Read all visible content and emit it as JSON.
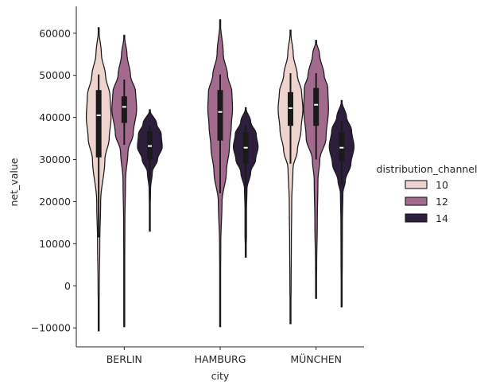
{
  "chart_data": {
    "type": "violin",
    "title": "",
    "xlabel": "city",
    "ylabel": "net_value",
    "categories": [
      "BERLIN",
      "HAMBURG",
      "MÜNCHEN"
    ],
    "ylim": [
      -14500,
      66000
    ],
    "yticks": [
      -10000,
      0,
      10000,
      20000,
      30000,
      40000,
      50000,
      60000
    ],
    "ytick_labels": [
      "−10000",
      "0",
      "10000",
      "20000",
      "30000",
      "40000",
      "50000",
      "60000"
    ],
    "legend": {
      "title": "distribution_channel",
      "placement": "right",
      "entries": [
        "10",
        "12",
        "14"
      ]
    },
    "colors": {
      "10": "#eed3ce",
      "12": "#a26a8c",
      "14": "#2d1e3e",
      "outline": "#1a1a1a",
      "box": "#1a1a1a",
      "median": "#ffffff",
      "axis": "#262626"
    },
    "series": [
      {
        "name": "10",
        "violins": [
          {
            "category": "BERLIN",
            "min": -10700,
            "max": 61300,
            "q1": 30500,
            "median": 40500,
            "q3": 46500,
            "whisker_low": 11500,
            "whisker_high": 50200,
            "profile": [
              [
                -10700,
                0.0
              ],
              [
                0,
                0.05
              ],
              [
                10000,
                0.09
              ],
              [
                20000,
                0.16
              ],
              [
                30000,
                0.5
              ],
              [
                35000,
                0.85
              ],
              [
                40000,
                1.0
              ],
              [
                45000,
                0.92
              ],
              [
                50000,
                0.55
              ],
              [
                55000,
                0.22
              ],
              [
                61300,
                0.0
              ]
            ]
          },
          {
            "category": "MÜNCHEN",
            "min": -9000,
            "max": 60700,
            "q1": 38000,
            "median": 42200,
            "q3": 46000,
            "whisker_low": 29000,
            "whisker_high": 50500,
            "profile": [
              [
                -9000,
                0.0
              ],
              [
                0,
                0.05
              ],
              [
                10000,
                0.07
              ],
              [
                20000,
                0.1
              ],
              [
                28000,
                0.2
              ],
              [
                32000,
                0.55
              ],
              [
                37000,
                0.85
              ],
              [
                42000,
                1.0
              ],
              [
                46000,
                0.9
              ],
              [
                50000,
                0.55
              ],
              [
                55000,
                0.22
              ],
              [
                60700,
                0.0
              ]
            ]
          }
        ]
      },
      {
        "name": "12",
        "violins": [
          {
            "category": "BERLIN",
            "min": -9700,
            "max": 59500,
            "q1": 38700,
            "median": 42500,
            "q3": 45000,
            "whisker_low": 33500,
            "whisker_high": 49000,
            "profile": [
              [
                -9700,
                0.0
              ],
              [
                0,
                0.03
              ],
              [
                15000,
                0.05
              ],
              [
                25000,
                0.1
              ],
              [
                32000,
                0.3
              ],
              [
                36000,
                0.72
              ],
              [
                42000,
                1.0
              ],
              [
                46000,
                0.92
              ],
              [
                50000,
                0.5
              ],
              [
                55000,
                0.22
              ],
              [
                59500,
                0.0
              ]
            ]
          },
          {
            "category": "HAMBURG",
            "min": -9700,
            "max": 63200,
            "q1": 34500,
            "median": 41300,
            "q3": 46500,
            "whisker_low": 22000,
            "whisker_high": 50200,
            "profile": [
              [
                -9700,
                0.0
              ],
              [
                0,
                0.03
              ],
              [
                10000,
                0.05
              ],
              [
                20000,
                0.15
              ],
              [
                27000,
                0.5
              ],
              [
                33000,
                0.75
              ],
              [
                38000,
                0.9
              ],
              [
                42000,
                1.0
              ],
              [
                46000,
                0.95
              ],
              [
                50000,
                0.6
              ],
              [
                55000,
                0.25
              ],
              [
                63200,
                0.0
              ]
            ]
          },
          {
            "category": "MÜNCHEN",
            "min": -3000,
            "max": 58300,
            "q1": 38000,
            "median": 43000,
            "q3": 47000,
            "whisker_low": 30000,
            "whisker_high": 50500,
            "profile": [
              [
                -3000,
                0.0
              ],
              [
                5000,
                0.05
              ],
              [
                15000,
                0.1
              ],
              [
                25000,
                0.15
              ],
              [
                30000,
                0.3
              ],
              [
                35000,
                0.8
              ],
              [
                42000,
                1.0
              ],
              [
                47000,
                0.95
              ],
              [
                50000,
                0.65
              ],
              [
                55000,
                0.28
              ],
              [
                58300,
                0.0
              ]
            ]
          }
        ]
      },
      {
        "name": "14",
        "violins": [
          {
            "category": "BERLIN",
            "min": 13000,
            "max": 41800,
            "q1": 30000,
            "median": 33200,
            "q3": 36700,
            "whisker_low": 25000,
            "whisker_high": 38000,
            "profile": [
              [
                13000,
                0.0
              ],
              [
                18000,
                0.03
              ],
              [
                23000,
                0.06
              ],
              [
                27000,
                0.2
              ],
              [
                30000,
                0.62
              ],
              [
                33000,
                1.0
              ],
              [
                36000,
                0.92
              ],
              [
                38500,
                0.55
              ],
              [
                41800,
                0.0
              ]
            ]
          },
          {
            "category": "HAMBURG",
            "min": 6800,
            "max": 42300,
            "q1": 29000,
            "median": 32800,
            "q3": 36500,
            "whisker_low": 24000,
            "whisker_high": 38000,
            "profile": [
              [
                6800,
                0.0
              ],
              [
                12000,
                0.06
              ],
              [
                18000,
                0.06
              ],
              [
                23000,
                0.1
              ],
              [
                27000,
                0.4
              ],
              [
                30000,
                0.8
              ],
              [
                33000,
                1.0
              ],
              [
                36000,
                0.85
              ],
              [
                39000,
                0.4
              ],
              [
                42300,
                0.0
              ]
            ]
          },
          {
            "category": "MÜNCHEN",
            "min": -5000,
            "max": 44000,
            "q1": 29500,
            "median": 32800,
            "q3": 36500,
            "whisker_low": 24000,
            "whisker_high": 39000,
            "profile": [
              [
                -5000,
                0.0
              ],
              [
                5000,
                0.05
              ],
              [
                15000,
                0.06
              ],
              [
                22000,
                0.1
              ],
              [
                25000,
                0.3
              ],
              [
                29000,
                0.75
              ],
              [
                33000,
                1.0
              ],
              [
                37000,
                0.8
              ],
              [
                40000,
                0.4
              ],
              [
                44000,
                0.0
              ]
            ]
          }
        ]
      }
    ]
  }
}
